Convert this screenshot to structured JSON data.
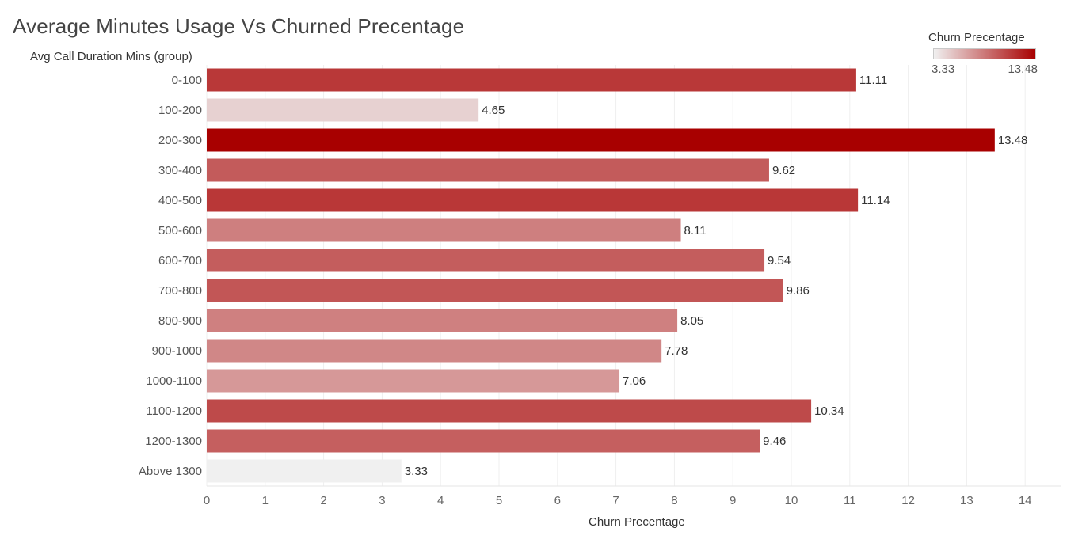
{
  "chart_data": {
    "type": "bar",
    "orientation": "horizontal",
    "title": "Average Minutes Usage Vs Churned Precentage",
    "ylabel": "Avg Call Duration Mins (group)",
    "xlabel": "Churn Precentage",
    "categories": [
      "0-100",
      "100-200",
      "200-300",
      "300-400",
      "400-500",
      "500-600",
      "600-700",
      "700-800",
      "800-900",
      "900-1000",
      "1000-1100",
      "1100-1200",
      "1200-1300",
      "Above 1300"
    ],
    "values": [
      11.11,
      4.65,
      13.48,
      9.62,
      11.14,
      8.11,
      9.54,
      9.86,
      8.05,
      7.78,
      7.06,
      10.34,
      9.46,
      3.33
    ],
    "value_labels": [
      "11.11",
      "4.65",
      "13.48",
      "9.62",
      "11.14",
      "8.11",
      "9.54",
      "9.86",
      "8.05",
      "7.78",
      "7.06",
      "10.34",
      "9.46",
      "3.33"
    ],
    "xlim": [
      0,
      14.5
    ],
    "xticks": [
      0,
      1,
      2,
      3,
      4,
      5,
      6,
      7,
      8,
      9,
      10,
      11,
      12,
      13,
      14
    ],
    "grid": "vertical",
    "legend": {
      "title": "Churn Precentage",
      "placement": "top-right",
      "min_label": "3.33",
      "max_label": "13.48",
      "min_value": 3.33,
      "max_value": 13.48,
      "color_low": "#f0f0f0",
      "color_high": "#a80000"
    }
  }
}
